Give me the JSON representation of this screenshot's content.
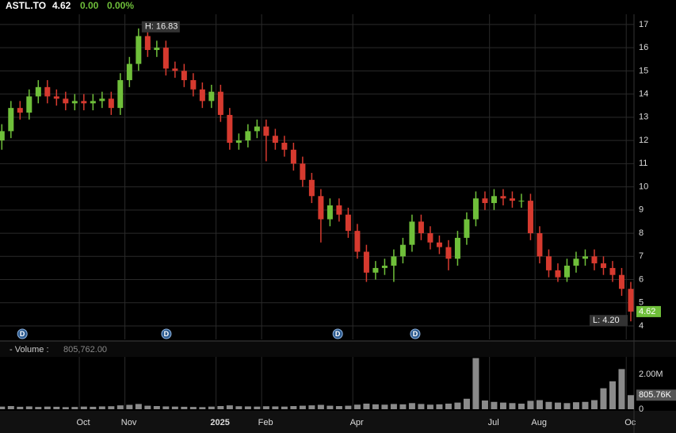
{
  "chart_data": {
    "type": "candlestick",
    "symbol": "ASTL.TO",
    "last_price": 4.62,
    "change": {
      "value": 0,
      "label": "0.00"
    },
    "change_percent": {
      "value": 0,
      "label": "0.00%"
    },
    "up_color": "#6fbf3a",
    "down_color": "#d63a2f",
    "xlim": [
      8.26,
      22.17
    ],
    "xticks": [
      {
        "value": 10,
        "label": "Oct"
      },
      {
        "value": 11,
        "label": "Nov"
      },
      {
        "value": 13,
        "label": "2025"
      },
      {
        "value": 14,
        "label": "Feb"
      },
      {
        "value": 16,
        "label": "Apr"
      },
      {
        "value": 19,
        "label": "Jul"
      },
      {
        "value": 20,
        "label": "Aug"
      },
      {
        "value": 22,
        "label": "Oc"
      }
    ],
    "ylim": [
      3.42,
      17.44
    ],
    "yticks": [
      4,
      5,
      6,
      7,
      8,
      9,
      10,
      11,
      12,
      13,
      14,
      15,
      16,
      17
    ],
    "grid": true,
    "x": [
      8.3,
      8.5,
      8.7,
      8.9,
      9.1,
      9.3,
      9.5,
      9.7,
      9.9,
      10.1,
      10.3,
      10.5,
      10.7,
      10.9,
      11.1,
      11.3,
      11.5,
      11.7,
      11.9,
      12.1,
      12.3,
      12.5,
      12.7,
      12.9,
      13.1,
      13.3,
      13.5,
      13.7,
      13.9,
      14.1,
      14.3,
      14.5,
      14.7,
      14.9,
      15.1,
      15.3,
      15.5,
      15.7,
      15.9,
      16.1,
      16.3,
      16.5,
      16.7,
      16.9,
      17.1,
      17.3,
      17.5,
      17.7,
      17.9,
      18.1,
      18.3,
      18.5,
      18.7,
      18.9,
      19.1,
      19.3,
      19.5,
      19.7,
      19.9,
      20.1,
      20.3,
      20.5,
      20.7,
      20.9,
      21.1,
      21.3,
      21.5,
      21.7,
      21.9,
      22.1
    ],
    "open": [
      12.0,
      12.4,
      13.4,
      13.2,
      13.9,
      14.3,
      13.9,
      13.8,
      13.6,
      13.7,
      13.6,
      13.7,
      13.8,
      13.4,
      14.6,
      15.3,
      16.5,
      15.9,
      16.0,
      15.1,
      15.0,
      14.6,
      14.2,
      13.7,
      14.1,
      13.1,
      11.9,
      12.0,
      12.4,
      12.6,
      12.2,
      11.9,
      11.6,
      11.0,
      10.3,
      9.6,
      8.6,
      9.2,
      8.8,
      8.1,
      7.2,
      6.3,
      6.5,
      6.6,
      7.0,
      7.5,
      8.5,
      8.0,
      7.6,
      7.4,
      6.9,
      7.8,
      8.6,
      9.5,
      9.3,
      9.6,
      9.5,
      9.4,
      9.4,
      8.0,
      7.0,
      6.4,
      6.1,
      6.6,
      6.9,
      7.0,
      6.7,
      6.5,
      6.2,
      5.6
    ],
    "high": [
      12.7,
      13.7,
      13.7,
      14.2,
      14.6,
      14.6,
      14.2,
      14.1,
      14.0,
      14.0,
      14.0,
      14.1,
      14.1,
      14.9,
      15.6,
      16.83,
      16.7,
      16.3,
      16.3,
      15.4,
      15.3,
      14.9,
      14.5,
      14.4,
      14.4,
      13.4,
      12.3,
      12.7,
      12.9,
      12.9,
      12.5,
      12.2,
      11.9,
      11.3,
      10.6,
      9.9,
      9.5,
      9.5,
      9.1,
      8.4,
      7.5,
      6.8,
      6.9,
      7.3,
      7.8,
      8.8,
      8.8,
      8.3,
      7.9,
      7.7,
      8.1,
      8.9,
      9.8,
      9.8,
      9.9,
      9.9,
      9.8,
      9.7,
      9.7,
      8.3,
      7.3,
      6.7,
      6.9,
      7.2,
      7.3,
      7.3,
      7.0,
      6.8,
      6.5,
      5.9
    ],
    "low": [
      11.6,
      12.1,
      12.9,
      12.9,
      13.6,
      13.6,
      13.5,
      13.3,
      13.3,
      13.3,
      13.3,
      13.4,
      13.1,
      13.1,
      14.3,
      15.0,
      15.6,
      15.6,
      14.8,
      14.7,
      14.3,
      13.9,
      13.4,
      13.4,
      12.8,
      11.6,
      11.6,
      11.7,
      12.1,
      11.1,
      11.6,
      11.3,
      10.7,
      10.0,
      9.3,
      7.6,
      8.3,
      8.5,
      7.8,
      6.9,
      5.9,
      6.0,
      6.2,
      5.9,
      6.7,
      7.2,
      7.7,
      7.3,
      7.1,
      6.4,
      6.6,
      7.5,
      8.3,
      9.0,
      9.0,
      9.2,
      9.1,
      9.1,
      7.7,
      6.7,
      6.1,
      5.9,
      5.9,
      6.3,
      6.6,
      6.4,
      6.2,
      5.9,
      5.3,
      4.2
    ],
    "close": [
      12.4,
      13.4,
      13.2,
      13.9,
      14.3,
      13.9,
      13.8,
      13.6,
      13.7,
      13.6,
      13.7,
      13.8,
      13.4,
      14.6,
      15.3,
      16.5,
      15.9,
      16.0,
      15.1,
      15.0,
      14.6,
      14.2,
      13.7,
      14.1,
      13.1,
      11.9,
      12.0,
      12.4,
      12.6,
      12.2,
      11.9,
      11.6,
      11.0,
      10.3,
      9.6,
      8.6,
      9.2,
      8.8,
      8.1,
      7.2,
      6.3,
      6.5,
      6.6,
      7.0,
      7.5,
      8.5,
      8.0,
      7.6,
      7.4,
      6.9,
      7.8,
      8.6,
      9.5,
      9.3,
      9.6,
      9.5,
      9.4,
      9.4,
      8.0,
      7.0,
      6.4,
      6.1,
      6.6,
      6.9,
      7.0,
      6.7,
      6.5,
      6.2,
      5.6,
      4.62
    ],
    "annotations": [
      {
        "value": 16.83,
        "label": "H: 16.83"
      },
      {
        "value": 4.2,
        "label": "L: 4.20"
      }
    ],
    "dividends": [
      {
        "x": 8.75,
        "label": "D"
      },
      {
        "x": 11.91,
        "label": "D"
      },
      {
        "x": 15.67,
        "label": "D"
      },
      {
        "x": 17.37,
        "label": "D"
      }
    ],
    "volume": {
      "label": "- Volume :",
      "current": {
        "value": 805762,
        "label": "805,762.00"
      },
      "last_tag": {
        "value": 805762,
        "label": "805.76K"
      },
      "color": "#8a8a8a",
      "ylim": [
        0,
        3000000
      ],
      "yticks": [
        0,
        {
          "value": 2000000,
          "label": "2.00M"
        }
      ],
      "values": [
        150000,
        180000,
        140000,
        160000,
        130000,
        150000,
        140000,
        120000,
        130000,
        150000,
        140000,
        160000,
        170000,
        220000,
        250000,
        300000,
        200000,
        180000,
        160000,
        150000,
        140000,
        130000,
        120000,
        150000,
        180000,
        220000,
        170000,
        160000,
        150000,
        170000,
        160000,
        150000,
        180000,
        200000,
        220000,
        250000,
        200000,
        180000,
        200000,
        260000,
        320000,
        280000,
        260000,
        300000,
        280000,
        350000,
        300000,
        260000,
        280000,
        320000,
        380000,
        600000,
        2930000,
        500000,
        420000,
        380000,
        350000,
        320000,
        480000,
        520000,
        420000,
        380000,
        350000,
        400000,
        420000,
        520000,
        1200000,
        1600000,
        2300000,
        805762
      ]
    }
  }
}
